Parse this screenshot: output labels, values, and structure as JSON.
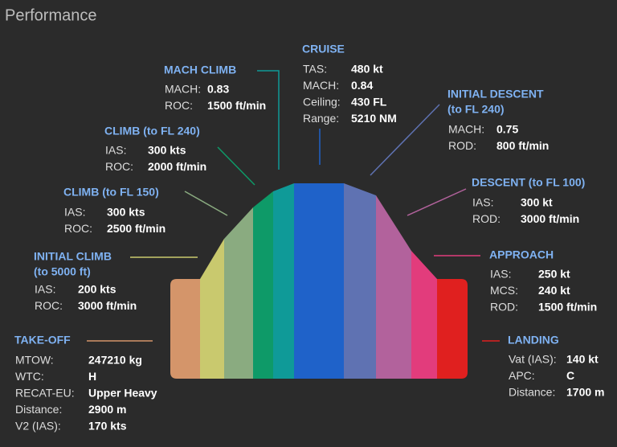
{
  "header": {
    "title": "Performance"
  },
  "phases": [
    {
      "title": [
        "TAKE-OFF"
      ],
      "color": "#d4956a",
      "rows": [
        [
          "MTOW:",
          "247210 kg"
        ],
        [
          "WTC:",
          "H"
        ],
        [
          "RECAT-EU:",
          "Upper Heavy"
        ],
        [
          "Distance:",
          "2900 m"
        ],
        [
          "V2 (IAS):",
          "170 kts"
        ]
      ]
    },
    {
      "title": [
        "INITIAL CLIMB",
        "(to 5000 ft)"
      ],
      "color": "#c9c96e",
      "rows": [
        [
          "IAS:",
          "200 kts"
        ],
        [
          "ROC:",
          "3000 ft/min"
        ]
      ]
    },
    {
      "title": [
        "CLIMB (to FL 150)"
      ],
      "color": "#8aab80",
      "rows": [
        [
          "IAS:",
          "300 kts"
        ],
        [
          "ROC:",
          "2500 ft/min"
        ]
      ]
    },
    {
      "title": [
        "CLIMB (to FL 240)"
      ],
      "color": "#0e9a68",
      "rows": [
        [
          "IAS:",
          "300 kts"
        ],
        [
          "ROC:",
          "2000 ft/min"
        ]
      ]
    },
    {
      "title": [
        "MACH CLIMB"
      ],
      "color": "#0f9a98",
      "rows": [
        [
          "MACH:",
          "0.83"
        ],
        [
          "ROC:",
          "1500 ft/min"
        ]
      ]
    },
    {
      "title": [
        "CRUISE"
      ],
      "color": "#1f62c9",
      "rows": [
        [
          "TAS:",
          "480 kt"
        ],
        [
          "MACH:",
          "0.84"
        ],
        [
          "Ceiling:",
          "430 FL"
        ],
        [
          "Range:",
          "5210 NM"
        ]
      ]
    },
    {
      "title": [
        "INITIAL DESCENT",
        "(to FL 240)"
      ],
      "color": "#5f72b2",
      "rows": [
        [
          "MACH:",
          "0.75"
        ],
        [
          "ROD:",
          "800 ft/min"
        ]
      ]
    },
    {
      "title": [
        "DESCENT (to FL 100)"
      ],
      "color": "#b2629c",
      "rows": [
        [
          "IAS:",
          "300 kt"
        ],
        [
          "ROD:",
          "3000 ft/min"
        ]
      ]
    },
    {
      "title": [
        "APPROACH"
      ],
      "color": "#e23c7c",
      "rows": [
        [
          "IAS:",
          "250 kt"
        ],
        [
          "MCS:",
          "240 kt"
        ],
        [
          "ROD:",
          "1500 ft/min"
        ]
      ]
    },
    {
      "title": [
        "LANDING"
      ],
      "color": "#e0201f",
      "rows": [
        [
          "Vat (IAS):",
          "140 kt"
        ],
        [
          "APC:",
          "C"
        ],
        [
          "Distance:",
          "1700 m"
        ]
      ]
    }
  ]
}
